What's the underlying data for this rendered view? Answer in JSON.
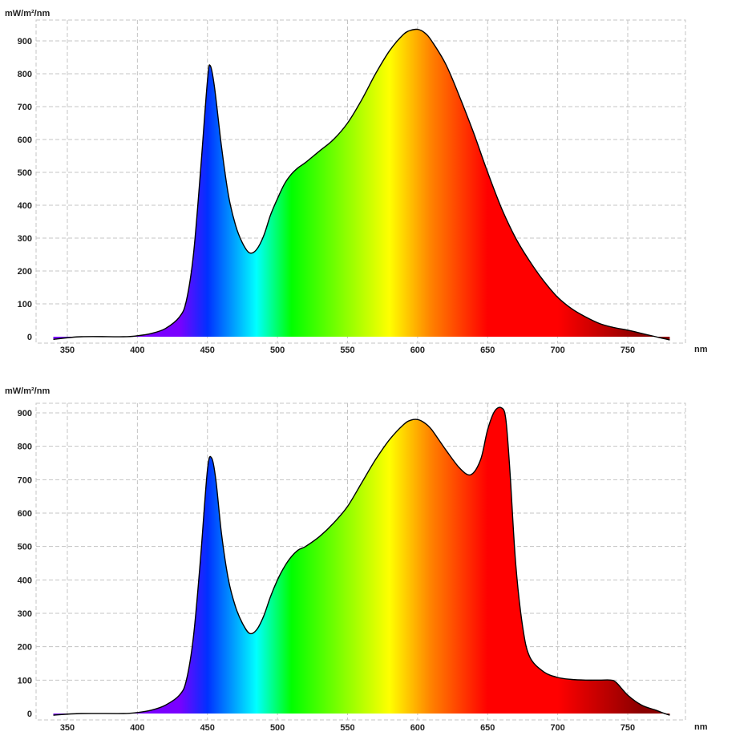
{
  "spectrum_colors": [
    "#7a00ff",
    "#0030ff",
    "#00ffff",
    "#00ff00",
    "#ffff00",
    "#ff8000",
    "#ff0000",
    "#8a0000"
  ],
  "chart_data": [
    {
      "type": "area",
      "ylabel": "mW/m²/nm",
      "xlabel": "nm",
      "xlim": [
        340,
        785
      ],
      "ylim": [
        0,
        950
      ],
      "x_ticks": [
        350,
        400,
        450,
        500,
        550,
        600,
        650,
        700,
        750
      ],
      "y_ticks": [
        0,
        100,
        200,
        300,
        400,
        500,
        600,
        700,
        800,
        900
      ],
      "grid": true,
      "fill": "visible-spectrum gradient",
      "series": [
        {
          "x": [
            340,
            360,
            390,
            400,
            410,
            420,
            430,
            435,
            440,
            445,
            450,
            452,
            455,
            460,
            465,
            470,
            475,
            480,
            485,
            490,
            495,
            500,
            505,
            510,
            515,
            520,
            530,
            540,
            550,
            560,
            570,
            580,
            590,
            595,
            600,
            605,
            610,
            620,
            630,
            640,
            650,
            660,
            670,
            680,
            690,
            700,
            710,
            720,
            730,
            740,
            750,
            760,
            770,
            775,
            780
          ],
          "y": [
            -8,
            0,
            0,
            3,
            10,
            25,
            60,
            110,
            250,
            500,
            780,
            825,
            760,
            580,
            430,
            340,
            285,
            255,
            265,
            305,
            370,
            420,
            465,
            495,
            515,
            530,
            565,
            600,
            650,
            720,
            800,
            870,
            920,
            932,
            935,
            925,
            900,
            830,
            730,
            620,
            500,
            390,
            300,
            230,
            170,
            120,
            85,
            60,
            40,
            28,
            20,
            10,
            0,
            -5,
            -10
          ]
        }
      ]
    },
    {
      "type": "area",
      "ylabel": "mW/m²/nm",
      "xlabel": "nm",
      "xlim": [
        340,
        785
      ],
      "ylim": [
        0,
        950
      ],
      "x_ticks": [
        350,
        400,
        450,
        500,
        550,
        600,
        650,
        700,
        750
      ],
      "y_ticks": [
        0,
        100,
        200,
        300,
        400,
        500,
        600,
        700,
        800,
        900
      ],
      "grid": true,
      "fill": "visible-spectrum gradient",
      "series": [
        {
          "x": [
            340,
            360,
            390,
            400,
            410,
            420,
            430,
            435,
            440,
            445,
            450,
            453,
            456,
            460,
            465,
            470,
            475,
            480,
            485,
            490,
            495,
            500,
            505,
            510,
            515,
            520,
            530,
            540,
            550,
            560,
            570,
            580,
            590,
            595,
            600,
            605,
            610,
            620,
            630,
            638,
            645,
            650,
            655,
            660,
            663,
            666,
            670,
            675,
            680,
            690,
            700,
            710,
            720,
            730,
            738,
            742,
            750,
            760,
            770,
            775,
            780
          ],
          "y": [
            -5,
            0,
            0,
            3,
            10,
            25,
            55,
            100,
            230,
            460,
            730,
            765,
            700,
            540,
            400,
            320,
            270,
            240,
            250,
            290,
            350,
            400,
            440,
            470,
            490,
            500,
            530,
            570,
            620,
            690,
            760,
            820,
            865,
            878,
            880,
            870,
            850,
            790,
            735,
            715,
            760,
            850,
            905,
            915,
            880,
            720,
            450,
            260,
            170,
            125,
            108,
            102,
            100,
            100,
            100,
            92,
            55,
            25,
            10,
            2,
            -5
          ]
        }
      ]
    }
  ]
}
